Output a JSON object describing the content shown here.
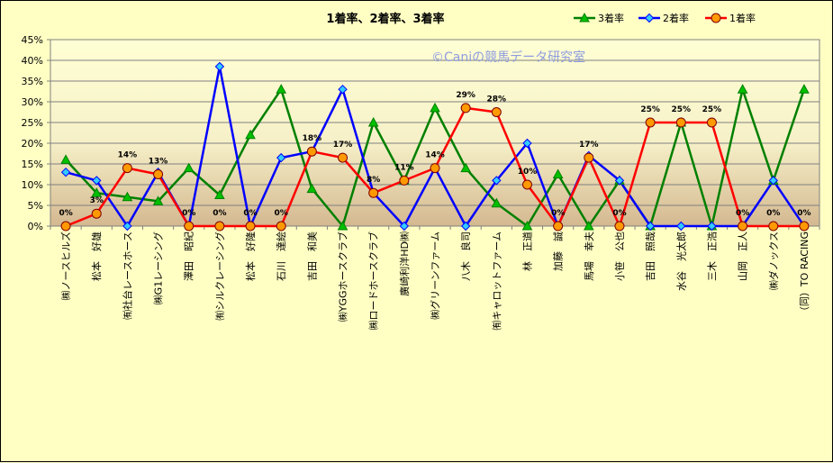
{
  "chart_data": {
    "type": "line",
    "title": "1着率、2着率、3着率",
    "watermark": "©Caniの競馬データ研究室",
    "ylim": [
      0,
      45
    ],
    "y_ticks": [
      "0%",
      "5%",
      "10%",
      "15%",
      "20%",
      "25%",
      "30%",
      "35%",
      "40%",
      "45%"
    ],
    "categories": [
      "㈱ノースヒルズ",
      "松本　好雄",
      "㈲社台レースホース",
      "㈱G1レーシング",
      "澤田　昭紀",
      "㈲シルクレーシング",
      "松本　好隆",
      "石川　達絵",
      "吉田　和美",
      "㈱YGGホースクラブ",
      "㈱ロードホースクラブ",
      "廣崎利洋HD㈱",
      "㈱グリーンファーム",
      "八木　良司",
      "㈲キャロットファーム",
      "林　正道",
      "加藤　誠",
      "馬場　幸夫",
      "小笹　公也",
      "吉田　照哉",
      "水谷　光太郎",
      "三木　正浩",
      "山岡　正人",
      "㈱ダノックス",
      "（同）TO RACING"
    ],
    "series": [
      {
        "name": "3着率",
        "color": "#008000",
        "marker": "triangle",
        "marker_fill": "#00c000",
        "values": [
          16,
          8,
          7,
          6,
          14,
          7.5,
          22,
          33,
          9,
          0,
          25,
          11,
          28.5,
          14,
          5.5,
          0,
          12.5,
          0,
          11,
          0,
          25,
          0,
          33,
          11,
          33
        ]
      },
      {
        "name": "2着率",
        "color": "#0000ff",
        "marker": "diamond",
        "marker_fill": "#33ccff",
        "values": [
          13,
          11,
          0,
          13,
          0,
          38.5,
          0,
          16.5,
          18,
          33,
          8,
          0,
          14,
          0,
          11,
          20,
          0,
          17,
          11,
          0,
          0,
          0,
          0,
          11,
          0
        ]
      },
      {
        "name": "1着率",
        "color": "#ff0000",
        "marker": "circle",
        "marker_fill": "#ff9900",
        "values": [
          0,
          3,
          14,
          12.5,
          0,
          0,
          0,
          0,
          18,
          16.5,
          8,
          11,
          14,
          28.5,
          27.5,
          10,
          0,
          16.5,
          0,
          25,
          25,
          25,
          0,
          0,
          0
        ]
      }
    ],
    "data_labels": [
      "0%",
      "3%",
      "14%",
      "13%",
      "0%",
      "0%",
      "0%",
      "0%",
      "18%",
      "17%",
      "8%",
      "11%",
      "14%",
      "29%",
      "28%",
      "10%",
      "0%",
      "17%",
      "0%",
      "25%",
      "25%",
      "25%",
      "0%",
      "0%",
      "0%"
    ],
    "legend_position": "top-right",
    "grid": "horizontal"
  }
}
